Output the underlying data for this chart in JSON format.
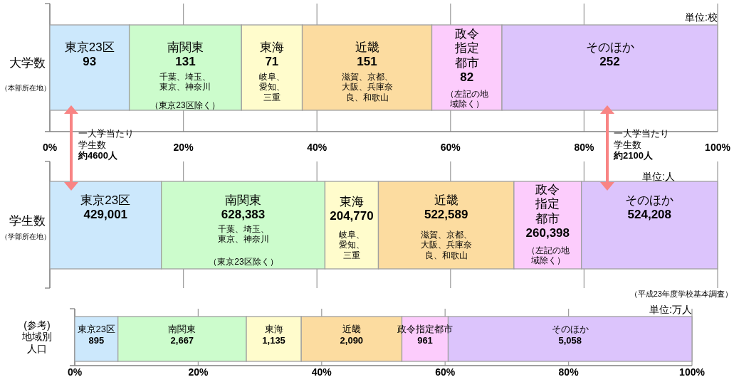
{
  "chart_data": [
    {
      "type": "bar",
      "orientation": "horizontal",
      "stacked": true,
      "categories": [
        "大学数"
      ],
      "xlim": [
        0,
        100
      ],
      "xticks": [
        {
          "value": 0,
          "label": "0%"
        },
        {
          "value": 20,
          "label": "20%"
        },
        {
          "value": 40,
          "label": "40%"
        },
        {
          "value": 60,
          "label": "60%"
        },
        {
          "value": 80,
          "label": "80%"
        },
        {
          "value": 100,
          "label": "100%"
        }
      ],
      "grid": "x",
      "series": [
        {
          "name": "東京23区",
          "color": "#cce8fc",
          "values": [
            11.9
          ]
        },
        {
          "name": "南関東",
          "color": "#ccfccc",
          "values": [
            16.8
          ]
        },
        {
          "name": "東海",
          "color": "#fffccc",
          "values": [
            9.1
          ]
        },
        {
          "name": "近畿",
          "color": "#fcdca0",
          "values": [
            19.4
          ]
        },
        {
          "name": "政令指定都市",
          "color": "#fcccfc",
          "values": [
            10.5
          ]
        },
        {
          "name": "そのほか",
          "color": "#dcc4fc",
          "values": [
            32.3
          ]
        }
      ],
      "annotations": [
        "93",
        "131",
        "71",
        "151",
        "82",
        "252",
        "千葉、埼玉、東京、神奈川",
        "（東京23区除く）",
        "岐阜、愛知、三重",
        "滋賀、京都、大阪、兵庫奈良、和歌山",
        "（左記の地域除く）",
        "（本部所在地）",
        "単位:校"
      ]
    },
    {
      "type": "bar",
      "orientation": "horizontal",
      "stacked": true,
      "categories": [
        "学生数"
      ],
      "xlim": [
        0,
        100
      ],
      "xticks": [
        {
          "value": 0,
          "label": null
        },
        {
          "value": 20,
          "label": null
        },
        {
          "value": 40,
          "label": null
        },
        {
          "value": 60,
          "label": null
        },
        {
          "value": 80,
          "label": null
        },
        {
          "value": 100,
          "label": null
        }
      ],
      "grid": "x",
      "tick_labels": "y",
      "series": [
        {
          "name": "東京23区",
          "color": "#cce8fc",
          "values": [
            16.7
          ]
        },
        {
          "name": "南関東",
          "color": "#ccfccc",
          "values": [
            24.5
          ]
        },
        {
          "name": "東海",
          "color": "#fffccc",
          "values": [
            8.0
          ]
        },
        {
          "name": "近畿",
          "color": "#fcdca0",
          "values": [
            20.3
          ]
        },
        {
          "name": "政令指定都市",
          "color": "#fcccfc",
          "values": [
            10.1
          ]
        },
        {
          "name": "そのほか",
          "color": "#dcc4fc",
          "values": [
            20.4
          ]
        }
      ],
      "annotations": [
        "429,001",
        "628,383",
        "204,770",
        "522,589",
        "260,398",
        "524,208",
        "千葉、埼玉、東京、神奈川",
        "（東京23区除く）",
        "岐阜、愛知、三重",
        "滋賀、京都、大阪、兵庫奈良、和歌山",
        "（左記の地域除く）",
        "（学部所在地）",
        "単位:人",
        "一大学当たり学生数**約4600人**",
        "一大学当たり学生数**約2100人**",
        "（平成23年度学校基本調査）"
      ]
    },
    {
      "type": "bar",
      "orientation": "horizontal",
      "stacked": true,
      "categories": [
        "(参考)地域別人口"
      ],
      "xlim": [
        0,
        100
      ],
      "xticks": [
        {
          "value": 0,
          "label": "0%"
        },
        {
          "value": 20,
          "label": "20%"
        },
        {
          "value": 40,
          "label": "40%"
        },
        {
          "value": 60,
          "label": "60%"
        },
        {
          "value": 80,
          "label": "80%"
        },
        {
          "value": 100,
          "label": "100%"
        }
      ],
      "grid": "x",
      "series": [
        {
          "name": "東京23区",
          "color": "#cce8fc",
          "values": [
            7.0
          ]
        },
        {
          "name": "南関東",
          "color": "#ccfccc",
          "values": [
            20.8
          ]
        },
        {
          "name": "東海",
          "color": "#fffccc",
          "values": [
            8.9
          ]
        },
        {
          "name": "近畿",
          "color": "#fcdca0",
          "values": [
            16.3
          ]
        },
        {
          "name": "政令指定都市",
          "color": "#fcccfc",
          "values": [
            7.5
          ]
        },
        {
          "name": "そのほか",
          "color": "#dcc4fc",
          "values": [
            39.5
          ]
        }
      ],
      "annotations": [
        "895",
        "2,667",
        "1,135",
        "2,090",
        "961",
        "5,058",
        "単位:万人"
      ]
    }
  ]
}
